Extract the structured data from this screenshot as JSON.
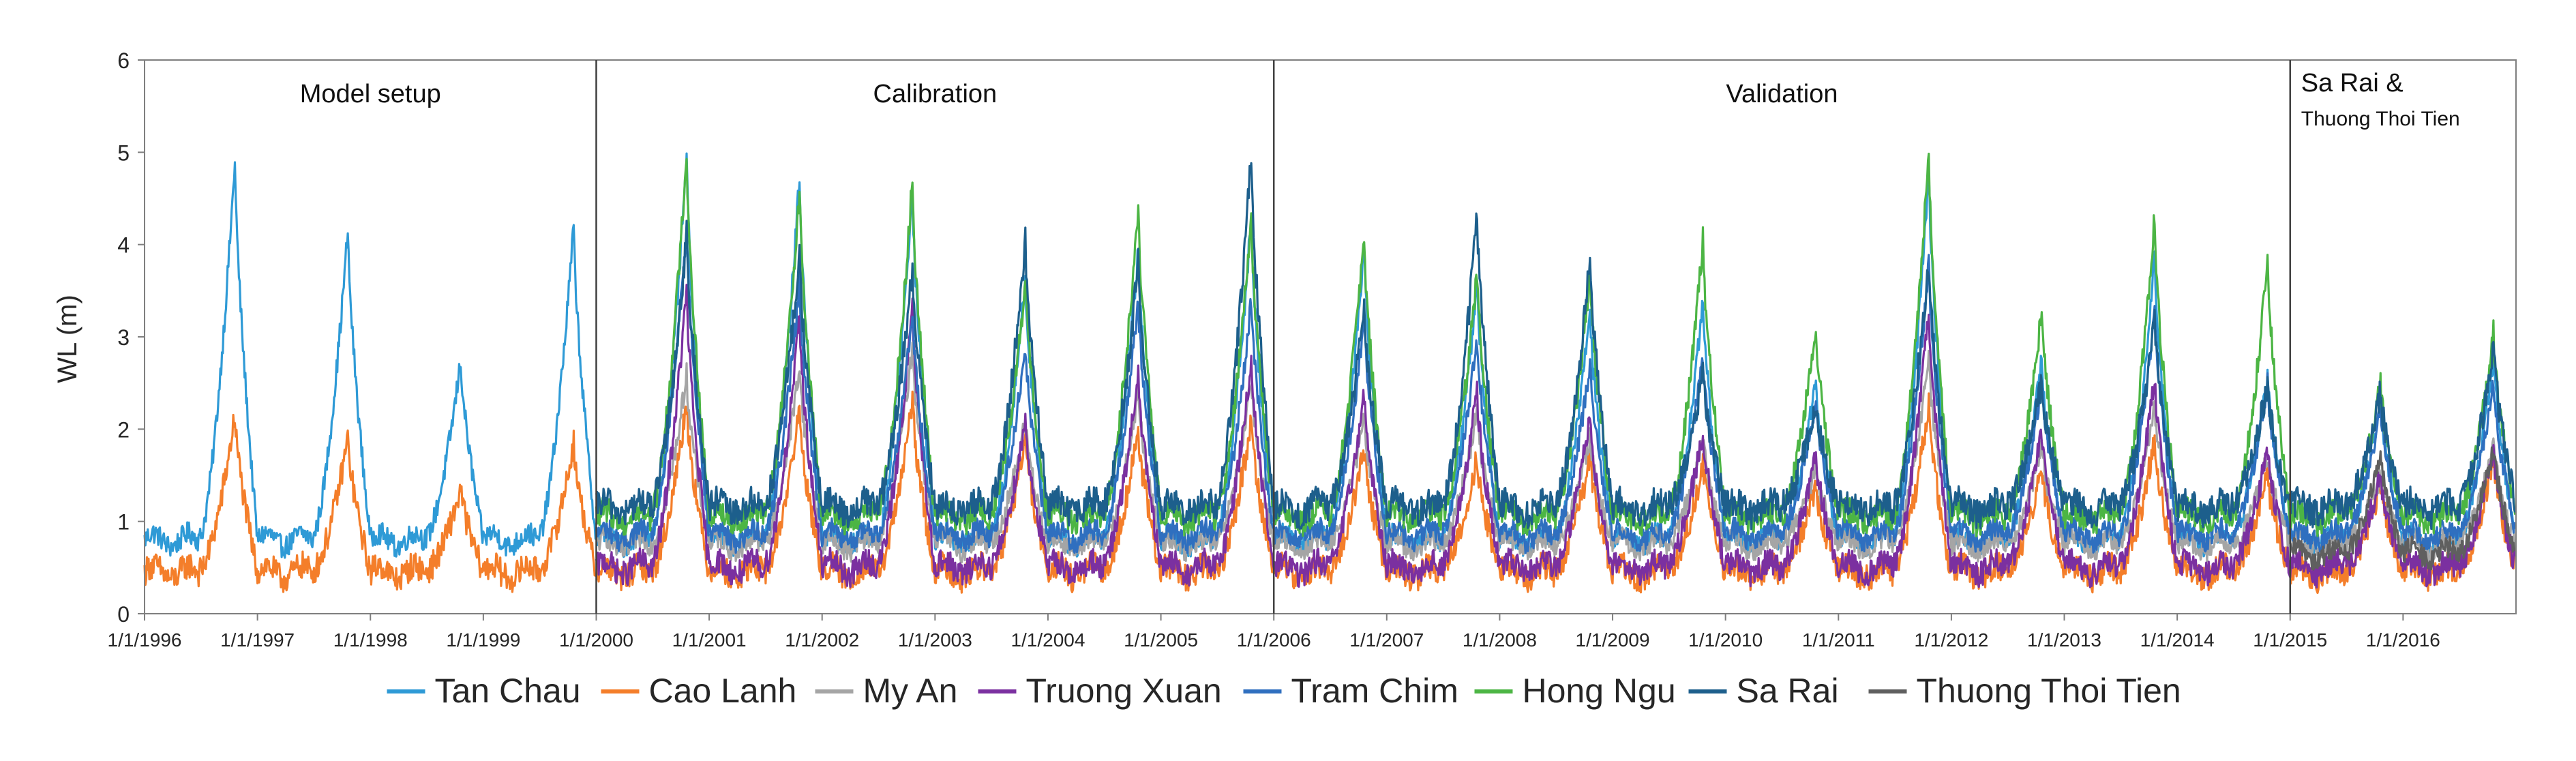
{
  "chart_data": {
    "type": "line",
    "title": "",
    "xlabel": "",
    "ylabel": "WL (m)",
    "ylim": [
      0,
      6
    ],
    "yticks": [
      "0",
      "1",
      "2",
      "3",
      "4",
      "5",
      "6"
    ],
    "xlim": [
      "1996-01-01",
      "2017-01-01"
    ],
    "xtick_labels": [
      "1/1/1996",
      "1/1/1997",
      "1/1/1998",
      "1/1/1999",
      "1/1/2000",
      "1/1/2001",
      "1/1/2002",
      "1/1/2003",
      "1/1/2004",
      "1/1/2005",
      "1/1/2006",
      "1/1/2007",
      "1/1/2008",
      "1/1/2009",
      "1/1/2010",
      "1/1/2011",
      "1/1/2012",
      "1/1/2013",
      "1/1/2014",
      "1/1/2015",
      "1/1/2016"
    ],
    "grid": false,
    "legend_position": "bottom",
    "periods": [
      {
        "label": "Model setup",
        "start": "1996-01-01",
        "end": "2000-01-01"
      },
      {
        "label": "Calibration",
        "start": "2000-01-01",
        "end": "2006-01-01"
      },
      {
        "label": "Validation",
        "start": "2006-01-01",
        "end": "2015-01-01"
      },
      {
        "label": "Sa Rai &",
        "sublabel": "Thuong Thoi Tien",
        "start": "2015-01-01",
        "end": "2017-01-01"
      }
    ],
    "series": [
      {
        "name": "Tan Chau",
        "color": "#2e9ad6",
        "start_year": 1996,
        "end_year": 2017,
        "base": 0.8,
        "jitter": 0.12,
        "peaks": [
          {
            "year": 1996,
            "peak": 4.9
          },
          {
            "year": 1997,
            "peak": 4.15
          },
          {
            "year": 1998,
            "peak": 2.75
          },
          {
            "year": 1999,
            "peak": 4.2
          },
          {
            "year": 2000,
            "peak": 4.95
          },
          {
            "year": 2001,
            "peak": 4.75
          },
          {
            "year": 2002,
            "peak": 4.6
          },
          {
            "year": 2003,
            "peak": 3.65
          },
          {
            "year": 2004,
            "peak": 3.95
          },
          {
            "year": 2005,
            "peak": 4.3
          },
          {
            "year": 2006,
            "peak": 4.0
          },
          {
            "year": 2007,
            "peak": 3.6
          },
          {
            "year": 2008,
            "peak": 3.3
          },
          {
            "year": 2009,
            "peak": 3.4
          },
          {
            "year": 2010,
            "peak": 2.55
          },
          {
            "year": 2011,
            "peak": 4.8
          },
          {
            "year": 2012,
            "peak": 2.75
          },
          {
            "year": 2013,
            "peak": 3.9
          },
          {
            "year": 2014,
            "peak": 2.6
          },
          {
            "year": 2015,
            "peak": 2.3
          },
          {
            "year": 2016,
            "peak": 2.8
          }
        ]
      },
      {
        "name": "Cao Lanh",
        "color": "#f47e2a",
        "start_year": 1996,
        "end_year": 2017,
        "base": 0.45,
        "jitter": 0.15,
        "peaks": [
          {
            "year": 1996,
            "peak": 2.15
          },
          {
            "year": 1997,
            "peak": 1.9
          },
          {
            "year": 1998,
            "peak": 1.35
          },
          {
            "year": 1999,
            "peak": 1.85
          },
          {
            "year": 2000,
            "peak": 2.3
          },
          {
            "year": 2001,
            "peak": 2.2
          },
          {
            "year": 2002,
            "peak": 2.3
          },
          {
            "year": 2003,
            "peak": 1.9
          },
          {
            "year": 2004,
            "peak": 2.0
          },
          {
            "year": 2005,
            "peak": 2.1
          },
          {
            "year": 2006,
            "peak": 1.8
          },
          {
            "year": 2007,
            "peak": 1.7
          },
          {
            "year": 2008,
            "peak": 1.7
          },
          {
            "year": 2009,
            "peak": 1.6
          },
          {
            "year": 2010,
            "peak": 1.4
          },
          {
            "year": 2011,
            "peak": 2.3
          },
          {
            "year": 2012,
            "peak": 1.6
          },
          {
            "year": 2013,
            "peak": 1.9
          },
          {
            "year": 2014,
            "peak": 1.5
          },
          {
            "year": 2015,
            "peak": 1.4
          },
          {
            "year": 2016,
            "peak": 1.7
          }
        ]
      },
      {
        "name": "My An",
        "color": "#a5a5a5",
        "start_year": 2000,
        "end_year": 2017,
        "base": 0.75,
        "jitter": 0.12,
        "peaks": [
          {
            "year": 2000,
            "peak": 2.6
          },
          {
            "year": 2001,
            "peak": 2.7
          },
          {
            "year": 2002,
            "peak": 2.9
          },
          {
            "year": 2003,
            "peak": 2.1
          },
          {
            "year": 2004,
            "peak": 2.4
          },
          {
            "year": 2005,
            "peak": 2.5
          },
          {
            "year": 2006,
            "peak": 2.1
          },
          {
            "year": 2007,
            "peak": 2.2
          },
          {
            "year": 2008,
            "peak": 1.9
          },
          {
            "year": 2009,
            "peak": 1.9
          },
          {
            "year": 2010,
            "peak": 1.6
          },
          {
            "year": 2011,
            "peak": 2.8
          },
          {
            "year": 2012,
            "peak": 1.8
          },
          {
            "year": 2013,
            "peak": 2.3
          },
          {
            "year": 2014,
            "peak": 1.7
          },
          {
            "year": 2015,
            "peak": 1.5
          },
          {
            "year": 2016,
            "peak": 1.8
          }
        ]
      },
      {
        "name": "Truong Xuan",
        "color": "#7b30a0",
        "start_year": 2000,
        "end_year": 2017,
        "base": 0.5,
        "jitter": 0.14,
        "peaks": [
          {
            "year": 2000,
            "peak": 3.5
          },
          {
            "year": 2001,
            "peak": 3.2
          },
          {
            "year": 2002,
            "peak": 3.3
          },
          {
            "year": 2003,
            "peak": 2.1
          },
          {
            "year": 2004,
            "peak": 2.6
          },
          {
            "year": 2005,
            "peak": 2.75
          },
          {
            "year": 2006,
            "peak": 2.4
          },
          {
            "year": 2007,
            "peak": 2.4
          },
          {
            "year": 2008,
            "peak": 2.15
          },
          {
            "year": 2009,
            "peak": 2.0
          },
          {
            "year": 2010,
            "peak": 1.7
          },
          {
            "year": 2011,
            "peak": 3.3
          },
          {
            "year": 2012,
            "peak": 2.0
          },
          {
            "year": 2013,
            "peak": 2.6
          },
          {
            "year": 2014,
            "peak": 1.8
          },
          {
            "year": 2015,
            "peak": 1.5
          },
          {
            "year": 2016,
            "peak": 1.8
          }
        ]
      },
      {
        "name": "Tram Chim",
        "color": "#2f6fbf",
        "start_year": 2000,
        "end_year": 2017,
        "base": 0.85,
        "jitter": 0.12,
        "peaks": [
          {
            "year": 2000,
            "peak": 4.2
          },
          {
            "year": 2001,
            "peak": 3.6
          },
          {
            "year": 2002,
            "peak": 3.3
          },
          {
            "year": 2003,
            "peak": 2.9
          },
          {
            "year": 2004,
            "peak": 3.4
          },
          {
            "year": 2005,
            "peak": 3.4
          },
          {
            "year": 2006,
            "peak": 3.2
          },
          {
            "year": 2007,
            "peak": 3.0
          },
          {
            "year": 2008,
            "peak": 2.7
          },
          {
            "year": 2009,
            "peak": 2.8
          },
          {
            "year": 2010,
            "peak": 2.3
          },
          {
            "year": 2011,
            "peak": 3.8
          },
          {
            "year": 2012,
            "peak": 2.5
          },
          {
            "year": 2013,
            "peak": 3.3
          },
          {
            "year": 2014,
            "peak": 2.5
          },
          {
            "year": 2015,
            "peak": 2.2
          },
          {
            "year": 2016,
            "peak": 2.5
          }
        ]
      },
      {
        "name": "Hong Ngu",
        "color": "#4cb544",
        "start_year": 2000,
        "end_year": 2017,
        "base": 1.05,
        "jitter": 0.14,
        "peaks": [
          {
            "year": 2000,
            "peak": 5.0
          },
          {
            "year": 2001,
            "peak": 4.6
          },
          {
            "year": 2002,
            "peak": 4.7
          },
          {
            "year": 2003,
            "peak": 3.6
          },
          {
            "year": 2004,
            "peak": 4.4
          },
          {
            "year": 2005,
            "peak": 4.3
          },
          {
            "year": 2006,
            "peak": 4.1
          },
          {
            "year": 2007,
            "peak": 3.7
          },
          {
            "year": 2008,
            "peak": 3.7
          },
          {
            "year": 2009,
            "peak": 4.05
          },
          {
            "year": 2010,
            "peak": 3.1
          },
          {
            "year": 2011,
            "peak": 5.0
          },
          {
            "year": 2012,
            "peak": 3.3
          },
          {
            "year": 2013,
            "peak": 4.3
          },
          {
            "year": 2014,
            "peak": 3.8
          },
          {
            "year": 2015,
            "peak": 2.5
          },
          {
            "year": 2016,
            "peak": 3.05
          }
        ]
      },
      {
        "name": "Sa Rai",
        "color": "#1d5f8c",
        "start_year": 2000,
        "end_year": 2017,
        "base": 1.15,
        "jitter": 0.16,
        "peaks": [
          {
            "year": 2000,
            "peak": 4.1
          },
          {
            "year": 2001,
            "peak": 3.9
          },
          {
            "year": 2002,
            "peak": 3.75
          },
          {
            "year": 2003,
            "peak": 4.05
          },
          {
            "year": 2004,
            "peak": 3.8
          },
          {
            "year": 2005,
            "peak": 5.0
          },
          {
            "year": 2006,
            "peak": 3.3
          },
          {
            "year": 2007,
            "peak": 4.35
          },
          {
            "year": 2008,
            "peak": 3.85
          },
          {
            "year": 2009,
            "peak": 2.6
          },
          {
            "year": 2010,
            "peak": 2.3
          },
          {
            "year": 2011,
            "peak": 3.8
          },
          {
            "year": 2012,
            "peak": 2.5
          },
          {
            "year": 2013,
            "peak": 3.2
          },
          {
            "year": 2014,
            "peak": 2.5
          },
          {
            "year": 2015,
            "peak": 2.4
          },
          {
            "year": 2016,
            "peak": 2.9
          }
        ]
      },
      {
        "name": "Thuong Thoi Tien",
        "color": "#5f5f5f",
        "start_year": 2015,
        "end_year": 2017,
        "base": 0.65,
        "jitter": 0.12,
        "peaks": [
          {
            "year": 2015,
            "peak": 1.7
          },
          {
            "year": 2016,
            "peak": 1.8
          }
        ]
      }
    ]
  }
}
